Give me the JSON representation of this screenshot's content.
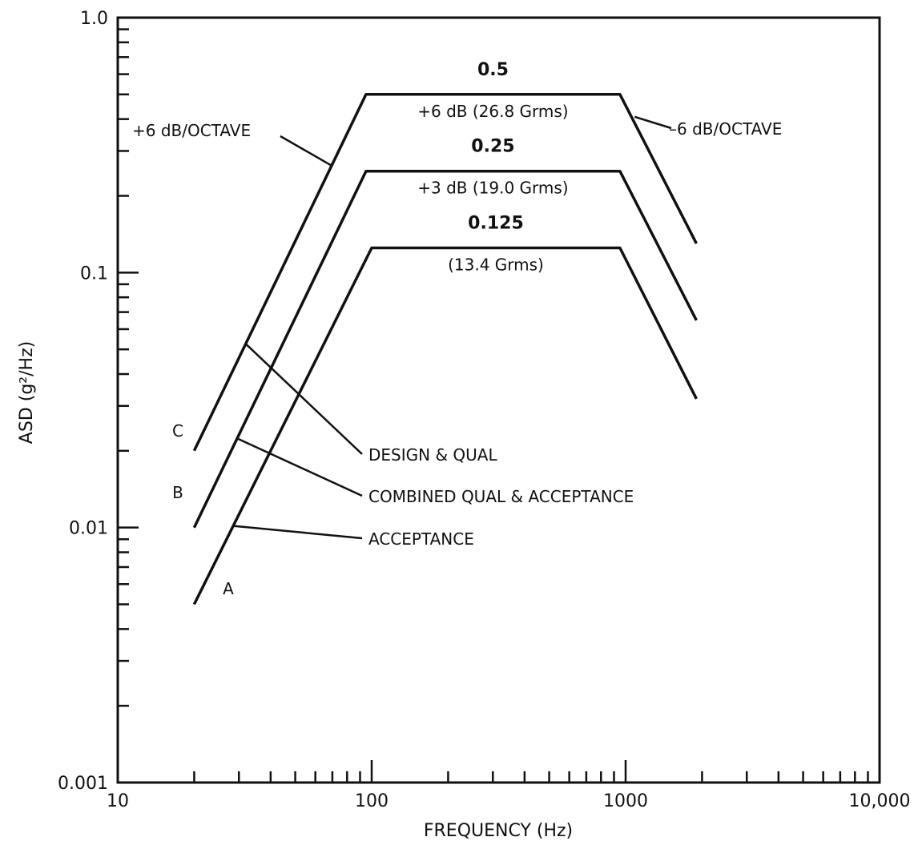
{
  "chart_data": {
    "type": "line",
    "title": "",
    "xlabel": "FREQUENCY (Hz)",
    "ylabel": "ASD (g²/Hz)",
    "x_scale": "log",
    "y_scale": "log",
    "xlim": [
      10,
      10000
    ],
    "ylim": [
      0.001,
      1.0
    ],
    "grid": false,
    "x_tick_labels": [
      {
        "value": 10,
        "label": "10"
      },
      {
        "value": 100,
        "label": "100"
      },
      {
        "value": 1000,
        "label": "1000"
      },
      {
        "value": 10000,
        "label": "10,000"
      }
    ],
    "y_tick_labels": [
      {
        "value": 1.0,
        "label": "1.0"
      },
      {
        "value": 0.1,
        "label": "0.1"
      },
      {
        "value": 0.01,
        "label": "0.01"
      },
      {
        "value": 0.001,
        "label": "0.001"
      }
    ],
    "series": [
      {
        "name": "DESIGN & QUAL",
        "curve_letter": "C",
        "x": [
          20,
          95,
          950,
          1900
        ],
        "y": [
          0.02,
          0.5,
          0.5,
          0.13
        ],
        "level_value": "0.5",
        "level_note": "+6 dB (26.8 Grms)"
      },
      {
        "name": "COMBINED QUAL & ACCEPTANCE",
        "curve_letter": "B",
        "x": [
          20,
          95,
          950,
          1900
        ],
        "y": [
          0.01,
          0.25,
          0.25,
          0.065
        ],
        "level_value": "0.25",
        "level_note": "+3 dB (19.0 Grms)"
      },
      {
        "name": "ACCEPTANCE",
        "curve_letter": "A",
        "x": [
          20,
          100,
          950,
          1900
        ],
        "y": [
          0.005,
          0.125,
          0.125,
          0.032
        ],
        "level_value": "0.125",
        "level_note": "(13.4 Grms)"
      }
    ],
    "annotations": {
      "rising_slope": "+6 dB/OCTAVE",
      "falling_slope": "–6 dB/OCTAVE"
    }
  }
}
